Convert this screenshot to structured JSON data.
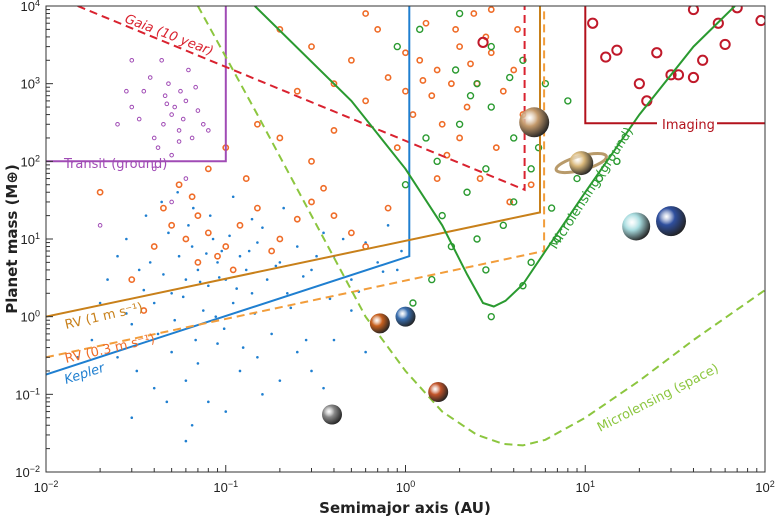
{
  "chart_data": {
    "type": "scatter",
    "xlabel": "Semimajor axis (AU)",
    "ylabel": "Planet mass (M⊕)",
    "x_scale": "log",
    "y_scale": "log",
    "xlim": [
      0.01,
      100
    ],
    "ylim": [
      0.01,
      10000
    ],
    "x_ticks": [
      "10^-2",
      "10^-1",
      "10^0",
      "10^1",
      "10^2"
    ],
    "y_ticks": [
      "10^-2",
      "10^-1",
      "10^0",
      "10^1",
      "10^2",
      "10^3",
      "10^4"
    ],
    "grid": false,
    "colors": {
      "transit_space": "#1f7fd0",
      "rv": "#ef6c28",
      "microlensing": "#2a9a30",
      "imaging": "#c0192a",
      "transit_ground": "#a04bb5",
      "rv1": "#c8801a",
      "rv03": "#f29d3b",
      "micro_space": "#8cc63f",
      "gaia": "#d9222f"
    },
    "points": {
      "blue": [
        [
          0.05,
          2
        ],
        [
          0.06,
          3
        ],
        [
          0.07,
          4
        ],
        [
          0.08,
          2.5
        ],
        [
          0.09,
          5
        ],
        [
          0.1,
          3
        ],
        [
          0.12,
          6
        ],
        [
          0.14,
          2
        ],
        [
          0.04,
          1.5
        ],
        [
          0.045,
          3.5
        ],
        [
          0.055,
          6
        ],
        [
          0.065,
          8
        ],
        [
          0.075,
          1.2
        ],
        [
          0.085,
          10
        ],
        [
          0.095,
          7
        ],
        [
          0.11,
          1.5
        ],
        [
          0.13,
          4
        ],
        [
          0.15,
          9
        ],
        [
          0.17,
          3
        ],
        [
          0.2,
          5
        ],
        [
          0.22,
          2
        ],
        [
          0.25,
          8
        ],
        [
          0.3,
          4
        ],
        [
          0.35,
          12
        ],
        [
          0.4,
          6
        ],
        [
          0.5,
          3
        ],
        [
          0.6,
          9
        ],
        [
          0.7,
          5
        ],
        [
          0.8,
          15
        ],
        [
          0.9,
          4
        ],
        [
          0.03,
          0.8
        ],
        [
          0.035,
          2.2
        ],
        [
          0.038,
          5
        ],
        [
          0.042,
          0.6
        ],
        [
          0.048,
          12
        ],
        [
          0.052,
          0.9
        ],
        [
          0.058,
          1.8
        ],
        [
          0.062,
          15
        ],
        [
          0.068,
          0.5
        ],
        [
          0.072,
          2.8
        ],
        [
          0.078,
          6.5
        ],
        [
          0.082,
          20
        ],
        [
          0.088,
          1
        ],
        [
          0.092,
          3.2
        ],
        [
          0.098,
          0.7
        ],
        [
          0.105,
          11
        ],
        [
          0.115,
          2.3
        ],
        [
          0.125,
          0.4
        ],
        [
          0.135,
          7
        ],
        [
          0.145,
          1.1
        ],
        [
          0.16,
          14
        ],
        [
          0.18,
          0.6
        ],
        [
          0.19,
          4.5
        ],
        [
          0.21,
          25
        ],
        [
          0.23,
          1.3
        ],
        [
          0.27,
          3.3
        ],
        [
          0.28,
          0.5
        ],
        [
          0.32,
          6
        ],
        [
          0.38,
          1.7
        ],
        [
          0.45,
          10
        ],
        [
          0.55,
          2.1
        ],
        [
          0.65,
          0.9
        ],
        [
          0.75,
          3.8
        ],
        [
          0.95,
          7
        ],
        [
          0.025,
          0.3
        ],
        [
          0.028,
          1.1
        ],
        [
          0.032,
          0.2
        ],
        [
          0.04,
          0.12
        ],
        [
          0.05,
          0.35
        ],
        [
          0.06,
          0.15
        ],
        [
          0.07,
          0.25
        ],
        [
          0.08,
          0.08
        ],
        [
          0.09,
          0.45
        ],
        [
          0.12,
          0.2
        ],
        [
          0.15,
          0.3
        ],
        [
          0.2,
          0.15
        ],
        [
          0.25,
          0.35
        ],
        [
          0.3,
          0.2
        ],
        [
          0.018,
          0.5
        ],
        [
          0.02,
          1.5
        ],
        [
          0.022,
          3
        ],
        [
          0.025,
          6
        ],
        [
          0.028,
          10
        ],
        [
          0.033,
          4
        ],
        [
          0.036,
          20
        ],
        [
          0.044,
          30
        ],
        [
          0.054,
          40
        ],
        [
          0.066,
          25
        ],
        [
          0.11,
          35
        ],
        [
          0.14,
          18
        ],
        [
          0.047,
          0.08
        ],
        [
          0.065,
          0.04
        ],
        [
          0.03,
          0.05
        ],
        [
          0.16,
          0.1
        ],
        [
          0.1,
          0.06
        ],
        [
          0.06,
          0.025
        ],
        [
          0.4,
          0.5
        ],
        [
          0.5,
          1.2
        ],
        [
          0.6,
          0.35
        ],
        [
          0.35,
          0.12
        ],
        [
          0.015,
          0.3
        ]
      ],
      "orange": [
        [
          0.04,
          8
        ],
        [
          0.05,
          15
        ],
        [
          0.06,
          10
        ],
        [
          0.07,
          20
        ],
        [
          0.08,
          12
        ],
        [
          0.1,
          8
        ],
        [
          0.12,
          15
        ],
        [
          0.15,
          25
        ],
        [
          0.2,
          10
        ],
        [
          0.25,
          18
        ],
        [
          0.3,
          30
        ],
        [
          0.4,
          20
        ],
        [
          0.5,
          12
        ],
        [
          0.07,
          5
        ],
        [
          0.09,
          6
        ],
        [
          0.11,
          4
        ],
        [
          0.045,
          25
        ],
        [
          0.055,
          50
        ],
        [
          0.065,
          35
        ],
        [
          0.13,
          60
        ],
        [
          0.18,
          7
        ],
        [
          0.35,
          45
        ],
        [
          0.6,
          8
        ],
        [
          0.8,
          25
        ],
        [
          0.03,
          3
        ],
        [
          0.035,
          1.2
        ],
        [
          0.02,
          40
        ],
        [
          0.1,
          150
        ],
        [
          0.08,
          80
        ],
        [
          0.2,
          200
        ],
        [
          0.15,
          300
        ],
        [
          0.3,
          100
        ],
        [
          0.4,
          250
        ],
        [
          0.6,
          600
        ],
        [
          0.8,
          1200
        ],
        [
          1,
          800
        ],
        [
          1.2,
          2000
        ],
        [
          1.5,
          1500
        ],
        [
          2,
          3000
        ],
        [
          2.5,
          1000
        ],
        [
          3,
          2500
        ],
        [
          1.1,
          400
        ],
        [
          1.4,
          700
        ],
        [
          1.8,
          1000
        ],
        [
          2.2,
          500
        ],
        [
          2.8,
          4000
        ],
        [
          3.5,
          800
        ],
        [
          4,
          1500
        ],
        [
          1.6,
          300
        ],
        [
          2,
          200
        ],
        [
          1,
          2500
        ],
        [
          0.7,
          5000
        ],
        [
          0.5,
          2000
        ],
        [
          1.3,
          6000
        ],
        [
          2.4,
          8000
        ],
        [
          3.2,
          150
        ],
        [
          4.5,
          400
        ],
        [
          1.7,
          120
        ],
        [
          2.6,
          60
        ],
        [
          3.8,
          30
        ],
        [
          1.5,
          60
        ],
        [
          0.9,
          150
        ],
        [
          0.4,
          1000
        ],
        [
          0.3,
          3000
        ],
        [
          0.2,
          5000
        ],
        [
          0.25,
          800
        ],
        [
          1.9,
          5000
        ],
        [
          3,
          9000
        ],
        [
          0.6,
          8000
        ],
        [
          5,
          50
        ],
        [
          4.2,
          5000
        ],
        [
          2.3,
          1800
        ],
        [
          1.25,
          1100
        ]
      ],
      "purple": [
        [
          0.04,
          200
        ],
        [
          0.045,
          300
        ],
        [
          0.05,
          400
        ],
        [
          0.055,
          250
        ],
        [
          0.06,
          600
        ],
        [
          0.035,
          800
        ],
        [
          0.042,
          150
        ],
        [
          0.048,
          1000
        ],
        [
          0.052,
          500
        ],
        [
          0.058,
          350
        ],
        [
          0.065,
          200
        ],
        [
          0.07,
          450
        ],
        [
          0.03,
          500
        ],
        [
          0.038,
          1200
        ],
        [
          0.046,
          700
        ],
        [
          0.062,
          1500
        ],
        [
          0.075,
          300
        ],
        [
          0.033,
          350
        ],
        [
          0.05,
          120
        ],
        [
          0.056,
          800
        ],
        [
          0.044,
          2000
        ],
        [
          0.068,
          900
        ],
        [
          0.08,
          250
        ],
        [
          0.04,
          80
        ],
        [
          0.06,
          60
        ],
        [
          0.025,
          300
        ],
        [
          0.028,
          800
        ],
        [
          0.05,
          30
        ],
        [
          0.02,
          15
        ],
        [
          0.03,
          2000
        ],
        [
          0.055,
          180
        ],
        [
          0.047,
          550
        ]
      ],
      "green": [
        [
          1,
          50
        ],
        [
          1.5,
          100
        ],
        [
          2,
          300
        ],
        [
          2.5,
          1000
        ],
        [
          3,
          500
        ],
        [
          4,
          200
        ],
        [
          5,
          80
        ],
        [
          2.2,
          40
        ],
        [
          3.5,
          15
        ],
        [
          1.8,
          8
        ],
        [
          2.8,
          4
        ],
        [
          4.5,
          2000
        ],
        [
          1.2,
          5000
        ],
        [
          2,
          8000
        ],
        [
          3,
          3000
        ],
        [
          6,
          1000
        ],
        [
          8,
          600
        ],
        [
          1.6,
          20
        ],
        [
          2.5,
          10
        ],
        [
          4,
          30
        ],
        [
          5,
          5
        ],
        [
          9,
          60
        ],
        [
          1.1,
          1.5
        ],
        [
          3,
          1
        ],
        [
          4.5,
          2.5
        ],
        [
          6.5,
          25
        ],
        [
          1.3,
          200
        ],
        [
          2.3,
          700
        ],
        [
          3.8,
          1200
        ],
        [
          5.5,
          150
        ],
        [
          2.8,
          80
        ],
        [
          1.9,
          1500
        ],
        [
          0.9,
          3000
        ],
        [
          7,
          10
        ],
        [
          12,
          60
        ],
        [
          15,
          100
        ],
        [
          1.4,
          3
        ]
      ],
      "red": [
        [
          2.7,
          3400
        ],
        [
          11,
          6000
        ],
        [
          13,
          2200
        ],
        [
          15,
          2700
        ],
        [
          20,
          1000
        ],
        [
          22,
          600
        ],
        [
          25,
          2500
        ],
        [
          30,
          1300
        ],
        [
          33,
          1300
        ],
        [
          40,
          9000
        ],
        [
          45,
          2000
        ],
        [
          55,
          6000
        ],
        [
          60,
          3200
        ],
        [
          70,
          9500
        ],
        [
          95,
          6500
        ],
        [
          40,
          1200
        ]
      ]
    },
    "curves": [
      {
        "id": "transit-ground",
        "label": "Transit (ground)",
        "color": "#a04bb5",
        "dash": false,
        "pts": [
          [
            0.01,
            100
          ],
          [
            0.1,
            100
          ],
          [
            0.1,
            10000
          ]
        ]
      },
      {
        "id": "gaia",
        "label": "Gaia (10 year)",
        "color": "#d9222f",
        "dash": true,
        "pts": [
          [
            0.015,
            10000
          ],
          [
            4.6,
            43
          ],
          [
            4.6,
            10000
          ]
        ]
      },
      {
        "id": "kepler",
        "label": "Kepler",
        "color": "#1f7fd0",
        "dash": false,
        "pts": [
          [
            0.01,
            0.18
          ],
          [
            1.05,
            6
          ],
          [
            1.05,
            10000
          ]
        ]
      },
      {
        "id": "rv1",
        "label": "RV (1 m s⁻¹)",
        "color": "#c8801a",
        "dash": false,
        "pts": [
          [
            0.01,
            1
          ],
          [
            5.6,
            22
          ],
          [
            5.6,
            10000
          ]
        ]
      },
      {
        "id": "rv03",
        "label": "RV (0.3 m s⁻¹)",
        "color": "#f29d3b",
        "dash": true,
        "pts": [
          [
            0.01,
            0.3
          ],
          [
            5.9,
            7
          ],
          [
            5.9,
            10000
          ]
        ]
      },
      {
        "id": "micro-ground",
        "label": "Microlensing (ground)",
        "color": "#2a9a30",
        "dash": false,
        "pts": [
          [
            0.145,
            10000
          ],
          [
            0.5,
            600
          ],
          [
            1,
            80
          ],
          [
            1.6,
            15
          ],
          [
            2.2,
            3.5
          ],
          [
            2.7,
            1.5
          ],
          [
            3.1,
            1.35
          ],
          [
            3.6,
            1.6
          ],
          [
            4.5,
            2.6
          ],
          [
            6,
            7
          ],
          [
            10,
            40
          ],
          [
            20,
            400
          ],
          [
            40,
            3000
          ],
          [
            68,
            10000
          ]
        ]
      },
      {
        "id": "micro-space",
        "label": "Microlensing (space)",
        "color": "#8cc63f",
        "dash": true,
        "pts": [
          [
            0.07,
            10000
          ],
          [
            0.15,
            400
          ],
          [
            0.3,
            20
          ],
          [
            0.6,
            1
          ],
          [
            1,
            0.2
          ],
          [
            1.6,
            0.06
          ],
          [
            2.5,
            0.03
          ],
          [
            3.5,
            0.023
          ],
          [
            4.5,
            0.022
          ],
          [
            6,
            0.026
          ],
          [
            10,
            0.05
          ],
          [
            20,
            0.15
          ],
          [
            40,
            0.5
          ],
          [
            100,
            2.2
          ]
        ]
      },
      {
        "id": "imaging",
        "label": "Imaging",
        "color": "#b3121c",
        "dash": false,
        "pts": [
          [
            10,
            10000
          ],
          [
            10,
            310
          ],
          [
            100,
            310
          ]
        ]
      }
    ],
    "solar_system": [
      {
        "name": "Mercury",
        "a": 0.39,
        "m": 0.055,
        "color": "#8a8a8a"
      },
      {
        "name": "Venus",
        "a": 0.72,
        "m": 0.82,
        "color": "#c8601e"
      },
      {
        "name": "Earth",
        "a": 1.0,
        "m": 1.0,
        "color": "#3a6fb0"
      },
      {
        "name": "Mars",
        "a": 1.52,
        "m": 0.107,
        "color": "#c2542a"
      },
      {
        "name": "Jupiter",
        "a": 5.2,
        "m": 318,
        "color": "#c49a6c"
      },
      {
        "name": "Saturn",
        "a": 9.5,
        "m": 95,
        "color": "#d8b77a"
      },
      {
        "name": "Uranus",
        "a": 19.2,
        "m": 14.5,
        "color": "#a9dde0"
      },
      {
        "name": "Neptune",
        "a": 30,
        "m": 17,
        "color": "#2f4f9e"
      }
    ]
  }
}
